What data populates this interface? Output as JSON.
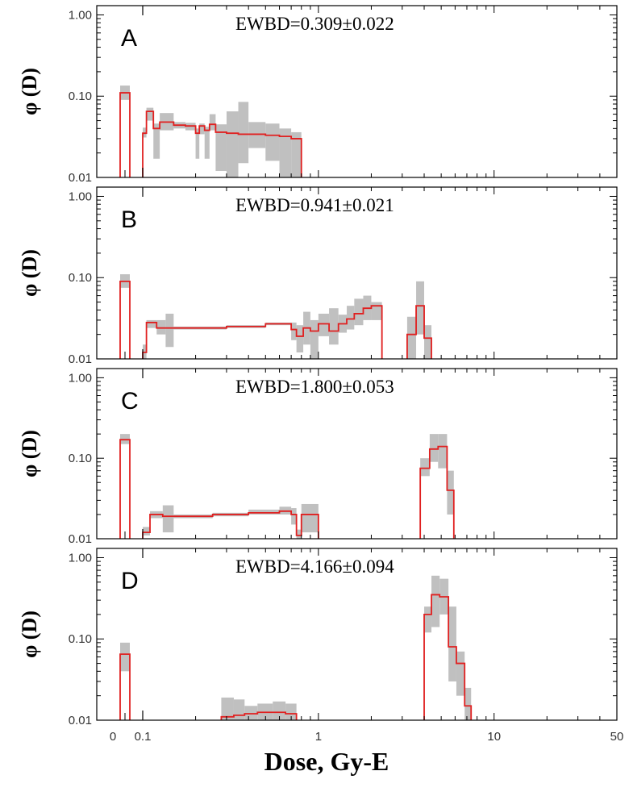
{
  "chart_data": {
    "type": "step-histogram",
    "xlabel": "Dose, Gy-E",
    "ylabel": "φ (D)",
    "x_scale": "log",
    "x_range": [
      0.1,
      50
    ],
    "x_zero_bin": "0",
    "x_ticks": [
      "0",
      "0.1",
      "1",
      "10",
      "50"
    ],
    "y_scale": "log",
    "y_range": [
      0.01,
      1.3
    ],
    "y_ticks": [
      "0.01",
      "0.10",
      "1.00"
    ],
    "panels": [
      {
        "letter": "A",
        "ewbd": "EWBD=0.309±0.022",
        "zero_bin": {
          "value": 0.11,
          "lo": 0.09,
          "hi": 0.135
        },
        "bins": [
          {
            "x0": 0.1,
            "x1": 0.105,
            "y": 0.035,
            "lo": 0.031,
            "hi": 0.041
          },
          {
            "x0": 0.105,
            "x1": 0.115,
            "y": 0.065,
            "lo": 0.05,
            "hi": 0.072
          },
          {
            "x0": 0.115,
            "x1": 0.125,
            "y": 0.04,
            "lo": 0.017,
            "hi": 0.046
          },
          {
            "x0": 0.125,
            "x1": 0.15,
            "y": 0.048,
            "lo": 0.038,
            "hi": 0.062
          },
          {
            "x0": 0.15,
            "x1": 0.175,
            "y": 0.044,
            "lo": 0.04,
            "hi": 0.048
          },
          {
            "x0": 0.175,
            "x1": 0.2,
            "y": 0.043,
            "lo": 0.038,
            "hi": 0.047
          },
          {
            "x0": 0.2,
            "x1": 0.21,
            "y": 0.035,
            "lo": 0.017,
            "hi": 0.04
          },
          {
            "x0": 0.21,
            "x1": 0.225,
            "y": 0.043,
            "lo": 0.034,
            "hi": 0.046
          },
          {
            "x0": 0.225,
            "x1": 0.24,
            "y": 0.038,
            "lo": 0.017,
            "hi": 0.042
          },
          {
            "x0": 0.24,
            "x1": 0.26,
            "y": 0.045,
            "lo": 0.038,
            "hi": 0.06
          },
          {
            "x0": 0.26,
            "x1": 0.3,
            "y": 0.036,
            "lo": 0.012,
            "hi": 0.045
          },
          {
            "x0": 0.3,
            "x1": 0.35,
            "y": 0.035,
            "lo": 0.01,
            "hi": 0.065
          },
          {
            "x0": 0.35,
            "x1": 0.4,
            "y": 0.034,
            "lo": 0.015,
            "hi": 0.085
          },
          {
            "x0": 0.4,
            "x1": 0.5,
            "y": 0.034,
            "lo": 0.023,
            "hi": 0.048
          },
          {
            "x0": 0.5,
            "x1": 0.6,
            "y": 0.033,
            "lo": 0.016,
            "hi": 0.046
          },
          {
            "x0": 0.6,
            "x1": 0.7,
            "y": 0.032,
            "lo": 0.01,
            "hi": 0.04
          },
          {
            "x0": 0.7,
            "x1": 0.8,
            "y": 0.03,
            "lo": 0.01,
            "hi": 0.036
          }
        ]
      },
      {
        "letter": "B",
        "ewbd": "EWBD=0.941±0.021",
        "zero_bin": {
          "value": 0.09,
          "lo": 0.075,
          "hi": 0.11
        },
        "bins": [
          {
            "x0": 0.1,
            "x1": 0.105,
            "y": 0.012,
            "lo": 0.01,
            "hi": 0.015
          },
          {
            "x0": 0.105,
            "x1": 0.12,
            "y": 0.028,
            "lo": 0.024,
            "hi": 0.03
          },
          {
            "x0": 0.12,
            "x1": 0.135,
            "y": 0.024,
            "lo": 0.02,
            "hi": 0.03
          },
          {
            "x0": 0.135,
            "x1": 0.15,
            "y": 0.024,
            "lo": 0.014,
            "hi": 0.036
          },
          {
            "x0": 0.15,
            "x1": 0.3,
            "y": 0.024,
            "lo": 0.023,
            "hi": 0.025
          },
          {
            "x0": 0.3,
            "x1": 0.5,
            "y": 0.025,
            "lo": 0.024,
            "hi": 0.026
          },
          {
            "x0": 0.5,
            "x1": 0.7,
            "y": 0.027,
            "lo": 0.026,
            "hi": 0.028
          },
          {
            "x0": 0.7,
            "x1": 0.75,
            "y": 0.023,
            "lo": 0.017,
            "hi": 0.028
          },
          {
            "x0": 0.75,
            "x1": 0.82,
            "y": 0.019,
            "lo": 0.012,
            "hi": 0.026
          },
          {
            "x0": 0.82,
            "x1": 0.9,
            "y": 0.024,
            "lo": 0.015,
            "hi": 0.038
          },
          {
            "x0": 0.9,
            "x1": 1.0,
            "y": 0.022,
            "lo": 0.01,
            "hi": 0.03
          },
          {
            "x0": 1.0,
            "x1": 1.15,
            "y": 0.027,
            "lo": 0.019,
            "hi": 0.036
          },
          {
            "x0": 1.15,
            "x1": 1.3,
            "y": 0.022,
            "lo": 0.015,
            "hi": 0.042
          },
          {
            "x0": 1.3,
            "x1": 1.45,
            "y": 0.027,
            "lo": 0.021,
            "hi": 0.035
          },
          {
            "x0": 1.45,
            "x1": 1.6,
            "y": 0.031,
            "lo": 0.023,
            "hi": 0.045
          },
          {
            "x0": 1.6,
            "x1": 1.8,
            "y": 0.036,
            "lo": 0.026,
            "hi": 0.055
          },
          {
            "x0": 1.8,
            "x1": 2.0,
            "y": 0.042,
            "lo": 0.03,
            "hi": 0.06
          },
          {
            "x0": 2.0,
            "x1": 2.3,
            "y": 0.045,
            "lo": 0.03,
            "hi": 0.05
          },
          {
            "x0": 3.2,
            "x1": 3.6,
            "y": 0.02,
            "lo": 0.01,
            "hi": 0.033
          },
          {
            "x0": 3.6,
            "x1": 4.0,
            "y": 0.045,
            "lo": 0.02,
            "hi": 0.09
          },
          {
            "x0": 4.0,
            "x1": 4.4,
            "y": 0.018,
            "lo": 0.01,
            "hi": 0.026
          }
        ]
      },
      {
        "letter": "C",
        "ewbd": "EWBD=1.800±0.053",
        "zero_bin": {
          "value": 0.17,
          "lo": 0.15,
          "hi": 0.2
        },
        "bins": [
          {
            "x0": 0.1,
            "x1": 0.11,
            "y": 0.012,
            "lo": 0.011,
            "hi": 0.014
          },
          {
            "x0": 0.11,
            "x1": 0.13,
            "y": 0.02,
            "lo": 0.018,
            "hi": 0.022
          },
          {
            "x0": 0.13,
            "x1": 0.15,
            "y": 0.019,
            "lo": 0.012,
            "hi": 0.026
          },
          {
            "x0": 0.15,
            "x1": 0.25,
            "y": 0.019,
            "lo": 0.018,
            "hi": 0.02
          },
          {
            "x0": 0.25,
            "x1": 0.4,
            "y": 0.02,
            "lo": 0.019,
            "hi": 0.021
          },
          {
            "x0": 0.4,
            "x1": 0.6,
            "y": 0.021,
            "lo": 0.02,
            "hi": 0.023
          },
          {
            "x0": 0.6,
            "x1": 0.7,
            "y": 0.022,
            "lo": 0.02,
            "hi": 0.025
          },
          {
            "x0": 0.7,
            "x1": 0.75,
            "y": 0.02,
            "lo": 0.015,
            "hi": 0.024
          },
          {
            "x0": 0.75,
            "x1": 0.8,
            "y": 0.011,
            "lo": 0.01,
            "hi": 0.013
          },
          {
            "x0": 0.8,
            "x1": 1.0,
            "y": 0.02,
            "lo": 0.012,
            "hi": 0.027
          },
          {
            "x0": 3.8,
            "x1": 4.3,
            "y": 0.075,
            "lo": 0.06,
            "hi": 0.1
          },
          {
            "x0": 4.3,
            "x1": 4.8,
            "y": 0.13,
            "lo": 0.09,
            "hi": 0.2
          },
          {
            "x0": 4.8,
            "x1": 5.4,
            "y": 0.14,
            "lo": 0.075,
            "hi": 0.2
          },
          {
            "x0": 5.4,
            "x1": 5.9,
            "y": 0.04,
            "lo": 0.02,
            "hi": 0.07
          }
        ]
      },
      {
        "letter": "D",
        "ewbd": "EWBD=4.166±0.094",
        "zero_bin": {
          "value": 0.065,
          "lo": 0.04,
          "hi": 0.09
        },
        "bins": [
          {
            "x0": 0.28,
            "x1": 0.33,
            "y": 0.011,
            "lo": 0.01,
            "hi": 0.019
          },
          {
            "x0": 0.33,
            "x1": 0.38,
            "y": 0.0115,
            "lo": 0.01,
            "hi": 0.018
          },
          {
            "x0": 0.38,
            "x1": 0.45,
            "y": 0.012,
            "lo": 0.01,
            "hi": 0.015
          },
          {
            "x0": 0.45,
            "x1": 0.55,
            "y": 0.0125,
            "lo": 0.01,
            "hi": 0.016
          },
          {
            "x0": 0.55,
            "x1": 0.65,
            "y": 0.0125,
            "lo": 0.01,
            "hi": 0.017
          },
          {
            "x0": 0.65,
            "x1": 0.75,
            "y": 0.012,
            "lo": 0.01,
            "hi": 0.016
          },
          {
            "x0": 4.0,
            "x1": 4.4,
            "y": 0.2,
            "lo": 0.12,
            "hi": 0.25
          },
          {
            "x0": 4.4,
            "x1": 4.9,
            "y": 0.35,
            "lo": 0.14,
            "hi": 0.6
          },
          {
            "x0": 4.9,
            "x1": 5.5,
            "y": 0.33,
            "lo": 0.2,
            "hi": 0.55
          },
          {
            "x0": 5.5,
            "x1": 6.1,
            "y": 0.08,
            "lo": 0.03,
            "hi": 0.25
          },
          {
            "x0": 6.1,
            "x1": 6.8,
            "y": 0.05,
            "lo": 0.02,
            "hi": 0.07
          },
          {
            "x0": 6.8,
            "x1": 7.4,
            "y": 0.015,
            "lo": 0.01,
            "hi": 0.025
          }
        ]
      }
    ]
  },
  "colors": {
    "hist": "#e02020",
    "band": "#c0c0c0",
    "axis": "#000000"
  }
}
